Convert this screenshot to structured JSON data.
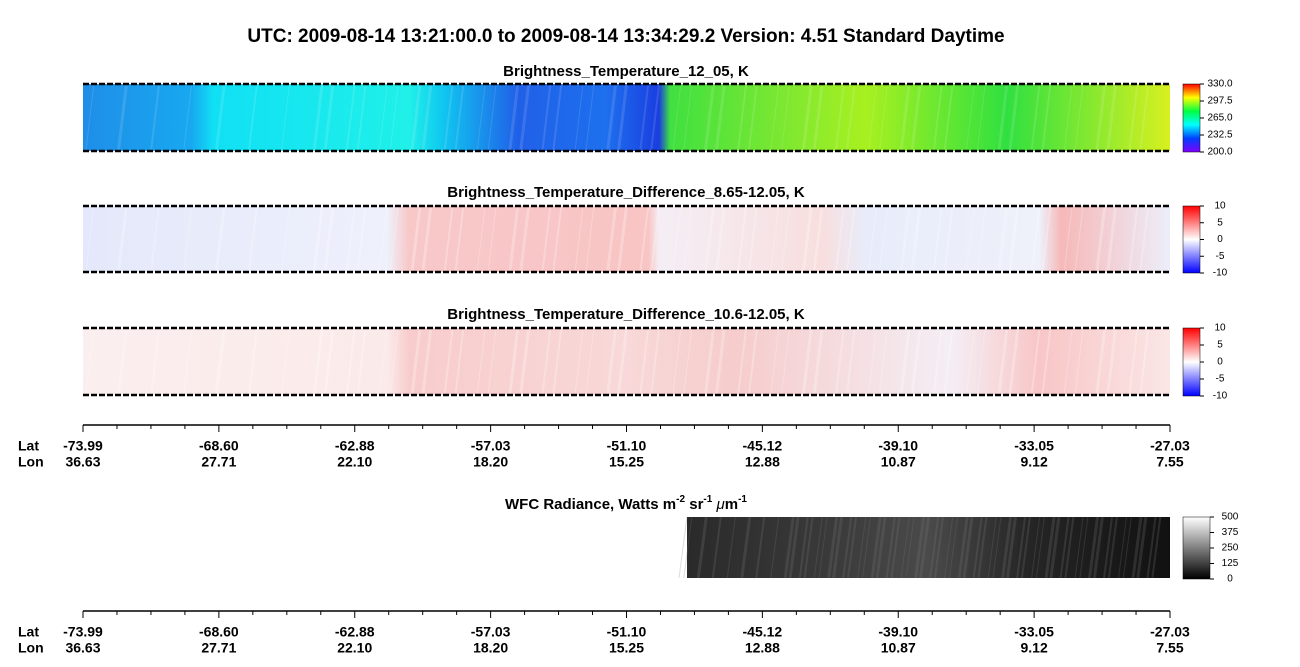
{
  "title": "UTC:  2009-08-14   13:21:00.0  to  2009-08-14   13:34:29.2    Version: 4.51  Standard Daytime",
  "panels": [
    {
      "title": "Brightness_Temperature_12_05, K",
      "colorbar": {
        "lim": [
          200,
          330
        ],
        "ticks": [
          {
            "value": 330,
            "label": "330.0"
          },
          297.5,
          {
            "value": 265,
            "label": "265.0"
          },
          232.5,
          {
            "value": 200,
            "label": "200.0"
          }
        ]
      }
    },
    {
      "title": "Brightness_Temperature_Difference_8.65-12.05, K",
      "colorbar": {
        "lim": [
          -10,
          10
        ],
        "ticks": [
          10,
          5,
          0,
          -5,
          -10
        ]
      }
    },
    {
      "title": "Brightness_Temperature_Difference_10.6-12.05, K",
      "colorbar": {
        "lim": [
          -10,
          10
        ],
        "ticks": [
          10,
          5,
          0,
          -5,
          -10
        ]
      }
    },
    {
      "title_parts": [
        "WFC Radiance, Watts m",
        "-2",
        " sr",
        "-1",
        " ",
        "μ",
        "m",
        "-1"
      ],
      "colorbar": {
        "lim": [
          0,
          500
        ],
        "ticks": [
          500,
          375,
          250,
          125,
          0
        ]
      }
    }
  ],
  "axes": [
    {
      "row_labels": [
        "Lat",
        "Lon"
      ],
      "lat": [
        -73.99,
        {
          "value": -68.6,
          "label": "-68.60"
        },
        -62.88,
        -57.03,
        {
          "value": -51.1,
          "label": "-51.10"
        },
        -45.12,
        {
          "value": -39.1,
          "label": "-39.10"
        },
        -33.05,
        -27.03
      ],
      "lon": [
        36.63,
        27.71,
        {
          "value": 22.1,
          "label": "22.10"
        },
        {
          "value": 18.2,
          "label": "18.20"
        },
        15.25,
        12.88,
        10.87,
        9.12,
        7.55
      ]
    },
    {
      "row_labels": [
        "Lat",
        "Lon"
      ],
      "lat": [
        -73.99,
        {
          "value": -68.6,
          "label": "-68.60"
        },
        -62.88,
        -57.03,
        {
          "value": -51.1,
          "label": "-51.10"
        },
        -45.12,
        {
          "value": -39.1,
          "label": "-39.10"
        },
        -33.05,
        -27.03
      ],
      "lon": [
        36.63,
        27.71,
        {
          "value": 22.1,
          "label": "22.10"
        },
        {
          "value": 18.2,
          "label": "18.20"
        },
        15.25,
        12.88,
        10.87,
        9.12,
        7.55
      ]
    }
  ]
}
